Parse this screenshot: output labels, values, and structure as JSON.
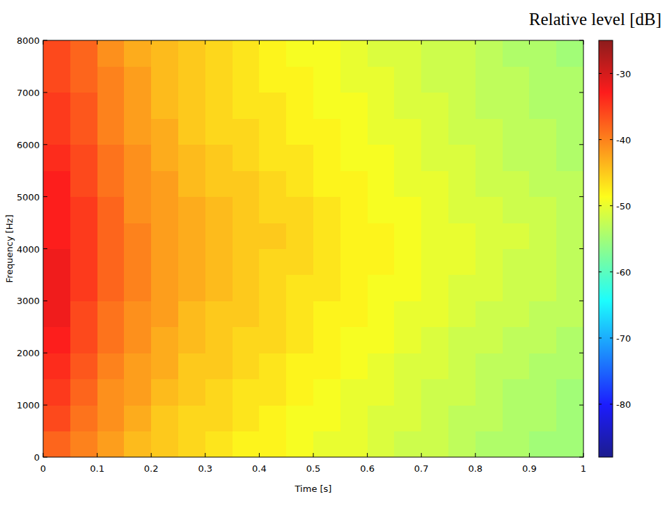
{
  "chart_data": {
    "type": "heatmap",
    "x_label": "Time [s]",
    "y_label": "Frequency [Hz]",
    "colorbar_label": "Relative level [dB]",
    "xlim": [
      0,
      1
    ],
    "ylim": [
      0,
      8000
    ],
    "xticks": [
      0,
      0.1,
      0.2,
      0.3,
      0.4,
      0.5,
      0.6,
      0.7,
      0.8,
      0.9,
      1
    ],
    "yticks": [
      0,
      1000,
      2000,
      3000,
      4000,
      5000,
      6000,
      7000,
      8000
    ],
    "x_edges": [
      0,
      0.05,
      0.1,
      0.15,
      0.2,
      0.25,
      0.3,
      0.35,
      0.4,
      0.45,
      0.5,
      0.55,
      0.6,
      0.65,
      0.7,
      0.75,
      0.8,
      0.85,
      0.9,
      0.95,
      1
    ],
    "y_edges": [
      0,
      500,
      1000,
      1500,
      2000,
      2500,
      3000,
      3500,
      4000,
      4500,
      5000,
      5500,
      6000,
      6500,
      7000,
      7500,
      8000
    ],
    "cells": [
      [
        -38,
        -40,
        -42,
        -44,
        -45,
        -46,
        -47,
        -48,
        -48,
        -49,
        -50,
        -50,
        -51,
        -52,
        -52,
        -53,
        -54,
        -54,
        -55,
        -55
      ],
      [
        -36,
        -39,
        -41,
        -43,
        -45,
        -46,
        -46,
        -47,
        -48,
        -49,
        -49,
        -50,
        -51,
        -51,
        -52,
        -53,
        -53,
        -54,
        -54,
        -55
      ],
      [
        -35,
        -38,
        -41,
        -42,
        -44,
        -45,
        -46,
        -47,
        -47,
        -48,
        -49,
        -50,
        -50,
        -51,
        -52,
        -52,
        -53,
        -54,
        -54,
        -55
      ],
      [
        -34,
        -37,
        -40,
        -42,
        -43,
        -45,
        -45,
        -46,
        -47,
        -48,
        -48,
        -49,
        -50,
        -51,
        -51,
        -52,
        -53,
        -53,
        -54,
        -54
      ],
      [
        -33,
        -36,
        -39,
        -41,
        -43,
        -44,
        -45,
        -46,
        -46,
        -47,
        -48,
        -49,
        -49,
        -50,
        -51,
        -52,
        -52,
        -53,
        -53,
        -54
      ],
      [
        -32,
        -36,
        -39,
        -41,
        -42,
        -44,
        -45,
        -45,
        -46,
        -47,
        -48,
        -48,
        -49,
        -50,
        -50,
        -51,
        -52,
        -52,
        -53,
        -53
      ],
      [
        -32,
        -35,
        -38,
        -40,
        -42,
        -43,
        -44,
        -45,
        -46,
        -47,
        -47,
        -48,
        -49,
        -49,
        -50,
        -51,
        -51,
        -52,
        -52,
        -53
      ],
      [
        -32,
        -35,
        -38,
        -40,
        -42,
        -43,
        -44,
        -45,
        -46,
        -46,
        -47,
        -48,
        -48,
        -49,
        -50,
        -50,
        -51,
        -52,
        -52,
        -53
      ],
      [
        -33,
        -35,
        -38,
        -40,
        -42,
        -43,
        -44,
        -45,
        -45,
        -46,
        -47,
        -48,
        -48,
        -49,
        -50,
        -50,
        -51,
        -51,
        -52,
        -53
      ],
      [
        -33,
        -35,
        -38,
        -41,
        -42,
        -43,
        -44,
        -45,
        -46,
        -46,
        -47,
        -48,
        -49,
        -49,
        -50,
        -51,
        -51,
        -52,
        -52,
        -53
      ],
      [
        -33,
        -36,
        -39,
        -41,
        -42,
        -44,
        -45,
        -45,
        -46,
        -47,
        -48,
        -48,
        -49,
        -50,
        -50,
        -51,
        -52,
        -52,
        -53,
        -53
      ],
      [
        -34,
        -36,
        -39,
        -41,
        -43,
        -44,
        -45,
        -46,
        -47,
        -47,
        -48,
        -49,
        -49,
        -50,
        -51,
        -51,
        -52,
        -53,
        -53,
        -54
      ],
      [
        -35,
        -37,
        -40,
        -42,
        -43,
        -45,
        -46,
        -46,
        -47,
        -48,
        -48,
        -49,
        -50,
        -50,
        -51,
        -52,
        -52,
        -53,
        -53,
        -54
      ],
      [
        -35,
        -37,
        -40,
        -42,
        -44,
        -45,
        -46,
        -47,
        -47,
        -48,
        -49,
        -49,
        -50,
        -51,
        -51,
        -52,
        -53,
        -53,
        -54,
        -54
      ],
      [
        -36,
        -38,
        -40,
        -42,
        -44,
        -45,
        -46,
        -47,
        -48,
        -48,
        -49,
        -50,
        -50,
        -51,
        -52,
        -52,
        -53,
        -53,
        -54,
        -54
      ],
      [
        -36,
        -38,
        -41,
        -43,
        -44,
        -45,
        -46,
        -47,
        -48,
        -49,
        -49,
        -50,
        -51,
        -51,
        -52,
        -52,
        -53,
        -54,
        -54,
        -55
      ]
    ],
    "colorbar_range": [
      -88,
      -25
    ],
    "colorbar_ticks": [
      -30,
      -40,
      -50,
      -60,
      -70,
      -80
    ]
  }
}
